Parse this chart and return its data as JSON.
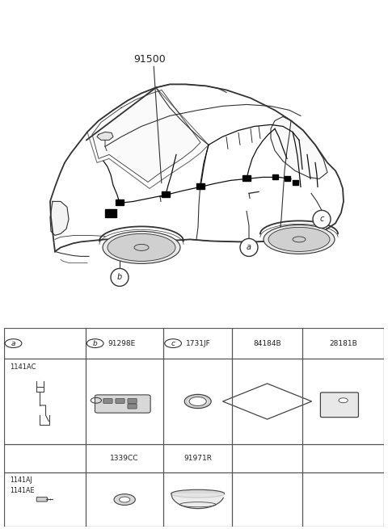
{
  "bg_color": "#ffffff",
  "lc": "#333333",
  "title_label": "91500",
  "col_headers_letter": [
    "a",
    "b",
    "c"
  ],
  "col_headers_num": [
    "91298E",
    "1731JF",
    "84184B",
    "28181B"
  ],
  "row1_code": "1141AC",
  "row2_codes": [
    "1339CC",
    "91971R"
  ],
  "row3_codes": [
    "1141AJ",
    "1141AE"
  ],
  "table_line_color": "#555555",
  "text_color": "#222222"
}
